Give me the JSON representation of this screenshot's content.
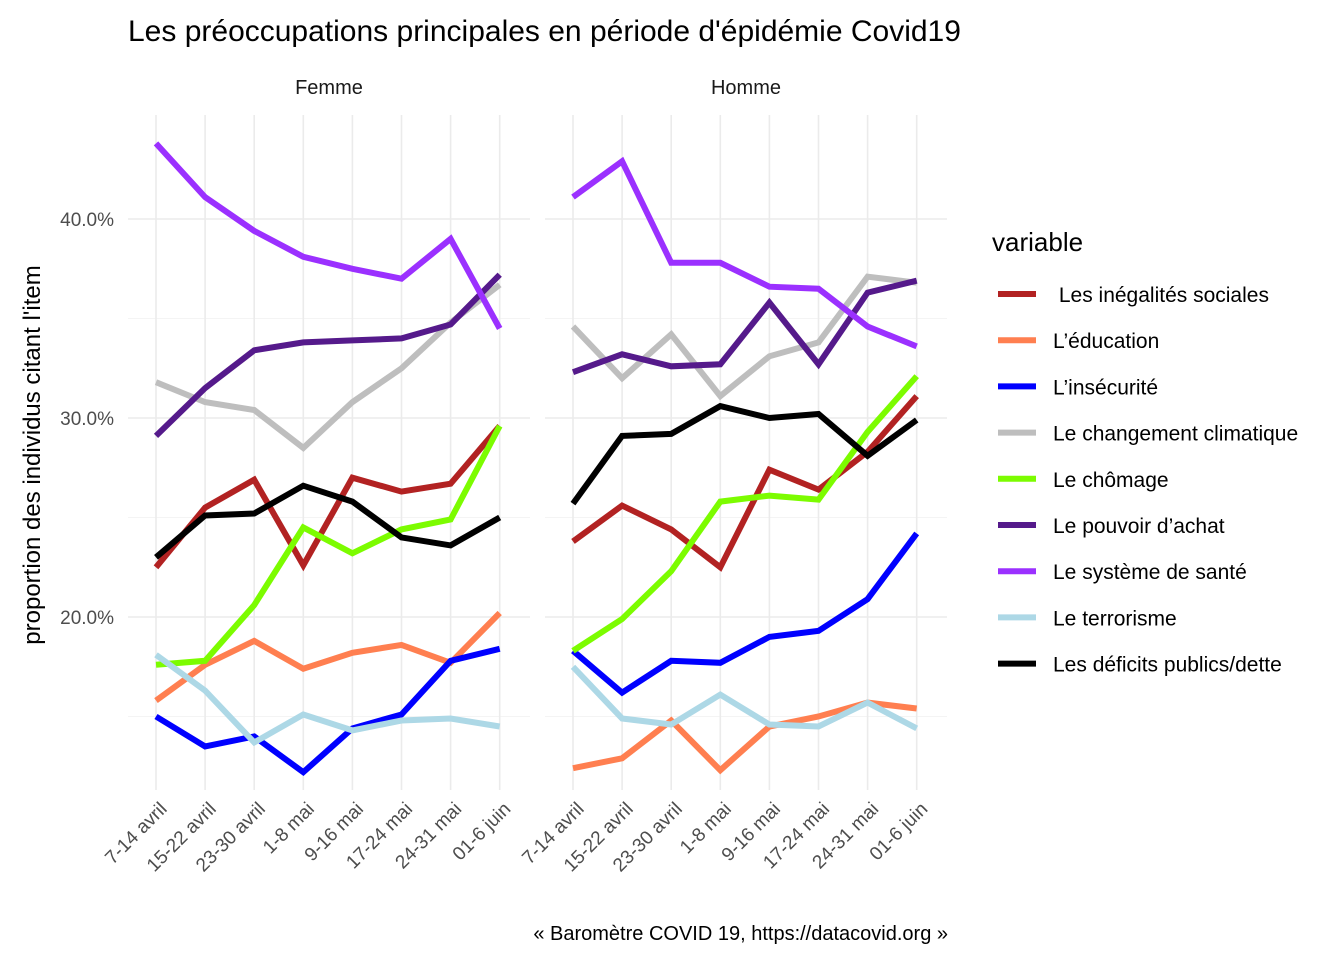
{
  "chart_data": {
    "type": "line",
    "title": "Les préoccupations principales en période d'épidémie Covid19",
    "ylabel": "proportion des individus citant l'item",
    "xlabel": "",
    "caption": "« Baromètre COVID 19, https://datacovid.org »",
    "ylim": [
      0.11,
      0.455
    ],
    "y_ticks": [
      0.2,
      0.3,
      0.4
    ],
    "y_tick_labels": [
      "20.0%",
      "30.0%",
      "40.0%"
    ],
    "categories": [
      "7-14 avril",
      "15-22 avril",
      "23-30 avril",
      "1-8 mai",
      "9-16 mai",
      "17-24 mai",
      "24-31 mai",
      "01-6 juin"
    ],
    "grid": true,
    "legend": {
      "title": "variable",
      "position": "right",
      "entries": [
        {
          "label": " Les inégalités sociales",
          "color": "#b22222"
        },
        {
          "label": "L’éducation",
          "color": "#ff7f50"
        },
        {
          "label": "L’insécurité",
          "color": "#0000ff"
        },
        {
          "label": "Le changement climatique",
          "color": "#bebebe"
        },
        {
          "label": "Le chômage",
          "color": "#7cfc00"
        },
        {
          "label": "Le pouvoir d’achat",
          "color": "#551a8b"
        },
        {
          "label": "Le système de santé",
          "color": "#9b30ff"
        },
        {
          "label": "Le terrorisme",
          "color": "#add8e6"
        },
        {
          "label": "Les déficits publics/dette",
          "color": "#000000"
        }
      ]
    },
    "panels": [
      {
        "facet": "Femme",
        "series": [
          {
            "legend_index": 0,
            "values": [
              0.225,
              0.255,
              0.269,
              0.226,
              0.27,
              0.263,
              0.267,
              0.296
            ]
          },
          {
            "legend_index": 1,
            "values": [
              0.158,
              0.176,
              0.188,
              0.174,
              0.182,
              0.186,
              0.177,
              0.202
            ]
          },
          {
            "legend_index": 2,
            "values": [
              0.15,
              0.135,
              0.14,
              0.122,
              0.144,
              0.151,
              0.178,
              0.184
            ]
          },
          {
            "legend_index": 3,
            "values": [
              0.318,
              0.308,
              0.304,
              0.285,
              0.308,
              0.325,
              0.348,
              0.367
            ]
          },
          {
            "legend_index": 4,
            "values": [
              0.176,
              0.178,
              0.206,
              0.245,
              0.232,
              0.244,
              0.249,
              0.296
            ]
          },
          {
            "legend_index": 5,
            "values": [
              0.291,
              0.315,
              0.334,
              0.338,
              0.339,
              0.34,
              0.347,
              0.372
            ]
          },
          {
            "legend_index": 6,
            "values": [
              0.438,
              0.411,
              0.394,
              0.381,
              0.375,
              0.37,
              0.39,
              0.345
            ]
          },
          {
            "legend_index": 7,
            "values": [
              0.181,
              0.163,
              0.137,
              0.151,
              0.143,
              0.148,
              0.149,
              0.145
            ]
          },
          {
            "legend_index": 8,
            "values": [
              0.23,
              0.251,
              0.252,
              0.266,
              0.258,
              0.24,
              0.236,
              0.25
            ]
          }
        ]
      },
      {
        "facet": "Homme",
        "series": [
          {
            "legend_index": 0,
            "values": [
              0.238,
              0.256,
              0.244,
              0.225,
              0.274,
              0.264,
              0.283,
              0.311
            ]
          },
          {
            "legend_index": 1,
            "values": [
              0.124,
              0.129,
              0.148,
              0.123,
              0.145,
              0.15,
              0.157,
              0.154
            ]
          },
          {
            "legend_index": 2,
            "values": [
              0.183,
              0.162,
              0.178,
              0.177,
              0.19,
              0.193,
              0.209,
              0.242
            ]
          },
          {
            "legend_index": 3,
            "values": [
              0.346,
              0.32,
              0.342,
              0.311,
              0.331,
              0.338,
              0.371,
              0.368
            ]
          },
          {
            "legend_index": 4,
            "values": [
              0.183,
              0.199,
              0.223,
              0.258,
              0.261,
              0.259,
              0.293,
              0.321
            ]
          },
          {
            "legend_index": 5,
            "values": [
              0.323,
              0.332,
              0.326,
              0.327,
              0.358,
              0.327,
              0.363,
              0.369
            ]
          },
          {
            "legend_index": 6,
            "values": [
              0.411,
              0.429,
              0.378,
              0.378,
              0.366,
              0.365,
              0.346,
              0.336
            ]
          },
          {
            "legend_index": 7,
            "values": [
              0.175,
              0.149,
              0.146,
              0.161,
              0.146,
              0.145,
              0.157,
              0.144
            ]
          },
          {
            "legend_index": 8,
            "values": [
              0.257,
              0.291,
              0.292,
              0.306,
              0.3,
              0.302,
              0.281,
              0.299
            ]
          }
        ]
      }
    ]
  }
}
